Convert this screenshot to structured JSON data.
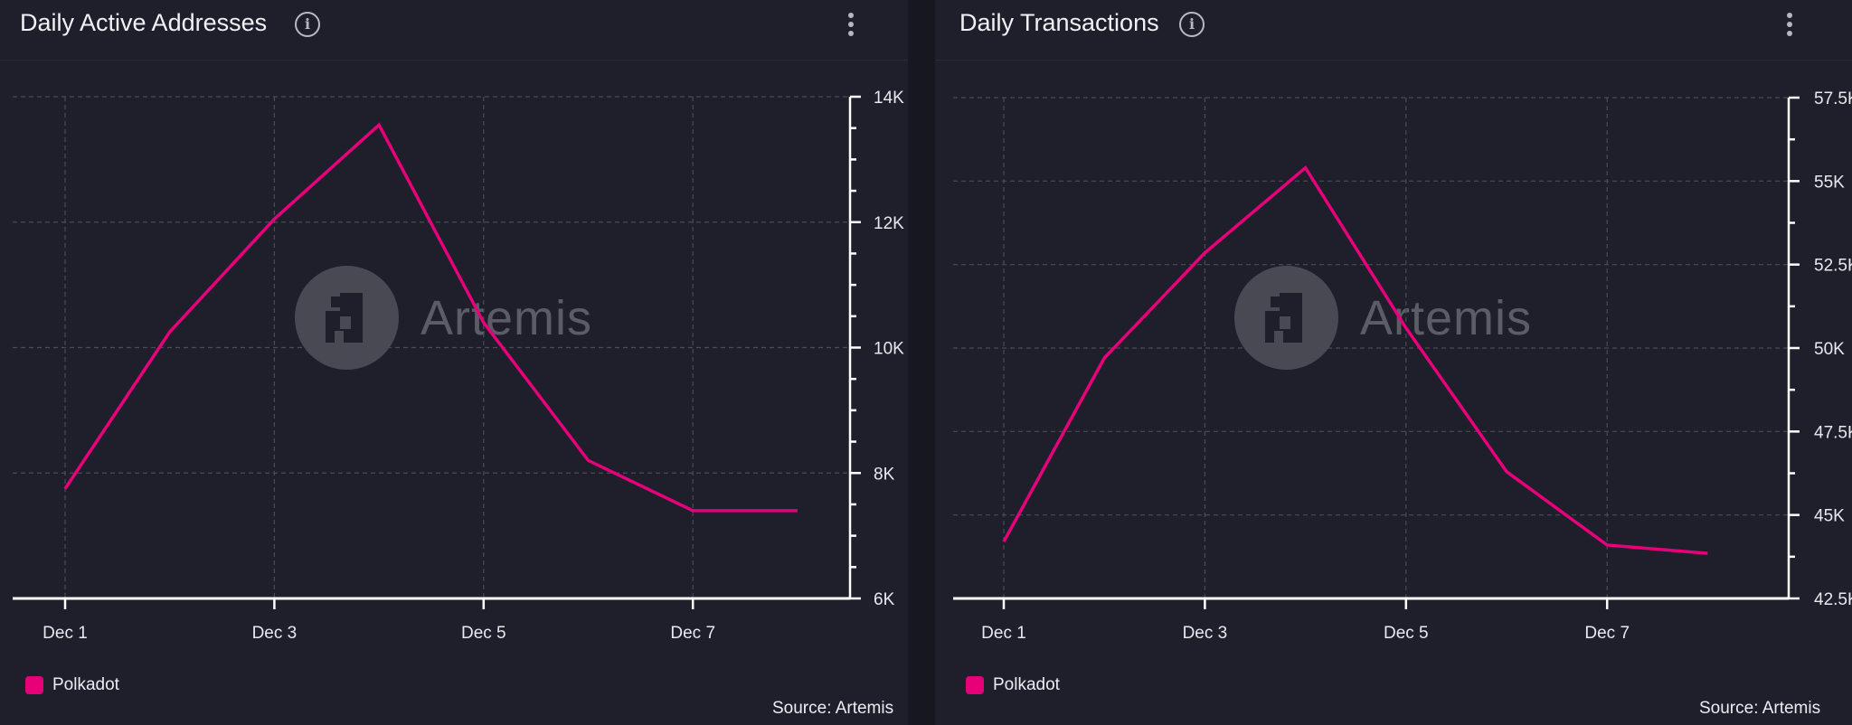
{
  "colors": {
    "series": "#e6007a",
    "panel_bg": "#1f1f2b",
    "grid": "#4a4a58",
    "axis": "#ffffff",
    "text": "#e8e8ee"
  },
  "watermark": {
    "text": "Artemis"
  },
  "source_text": "Source: Artemis",
  "charts": [
    {
      "title": "Daily Active Addresses",
      "legend_label": "Polkadot",
      "chart_data": {
        "type": "line",
        "title": "Daily Active Addresses",
        "xlabel": "",
        "ylabel": "",
        "x": [
          "Dec 1",
          "Dec 2",
          "Dec 3",
          "Dec 4",
          "Dec 5",
          "Dec 6",
          "Dec 7",
          "Dec 8"
        ],
        "x_tick_labels": [
          "Dec 1",
          "Dec 3",
          "Dec 5",
          "Dec 7"
        ],
        "series": [
          {
            "name": "Polkadot",
            "values": [
              7750,
              10250,
              12050,
              13550,
              10400,
              8200,
              7400,
              7400
            ]
          }
        ],
        "y_ticks": [
          6000,
          8000,
          10000,
          12000,
          14000
        ],
        "y_tick_labels": [
          "6K",
          "8K",
          "10K",
          "12K",
          "14K"
        ],
        "ylim": [
          6000,
          14000
        ],
        "y_axis_side": "right",
        "grid": true,
        "legend_position": "bottom-left"
      }
    },
    {
      "title": "Daily Transactions",
      "legend_label": "Polkadot",
      "chart_data": {
        "type": "line",
        "title": "Daily Transactions",
        "xlabel": "",
        "ylabel": "",
        "x": [
          "Dec 1",
          "Dec 2",
          "Dec 3",
          "Dec 4",
          "Dec 5",
          "Dec 6",
          "Dec 7",
          "Dec 8"
        ],
        "x_tick_labels": [
          "Dec 1",
          "Dec 3",
          "Dec 5",
          "Dec 7"
        ],
        "series": [
          {
            "name": "Polkadot",
            "values": [
              44200,
              49700,
              52850,
              55400,
              50600,
              46300,
              44100,
              43850
            ]
          }
        ],
        "y_ticks": [
          42500,
          45000,
          47500,
          50000,
          52500,
          55000,
          57500
        ],
        "y_tick_labels": [
          "42.5K",
          "45K",
          "47.5K",
          "50K",
          "52.5K",
          "55K",
          "57.5K"
        ],
        "ylim": [
          42500,
          57500
        ],
        "y_axis_side": "right",
        "grid": true,
        "legend_position": "bottom-left"
      }
    }
  ]
}
